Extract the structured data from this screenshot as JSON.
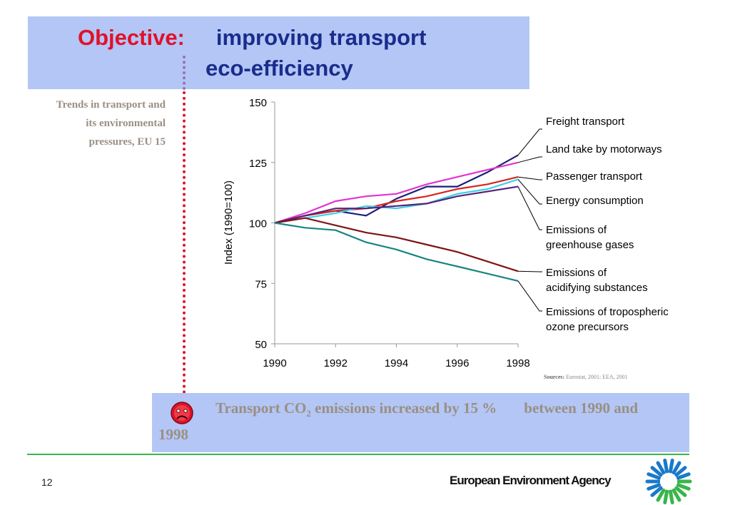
{
  "title": {
    "objective_label": "Objective:",
    "line1": "improving transport",
    "line2": "eco-efficiency"
  },
  "side_caption": {
    "line1": "Trends in transport and",
    "line2": "its environmental",
    "line3": "pressures, EU 15"
  },
  "chart_data": {
    "type": "line",
    "x": [
      1990,
      1991,
      1992,
      1993,
      1994,
      1995,
      1996,
      1997,
      1998
    ],
    "xticks": [
      "1990",
      "1992",
      "1994",
      "1996",
      "1998"
    ],
    "yticks": [
      "50",
      "75",
      "100",
      "125",
      "150"
    ],
    "ylabel": "Index (1990=100)",
    "xlabel": "",
    "ylim": [
      50,
      150
    ],
    "xlim": [
      1990,
      1998
    ],
    "grid": false,
    "legend": "right",
    "series": [
      {
        "name": "Freight transport",
        "color": "#1b1f7a",
        "values": [
          100,
          103,
          105,
          103,
          110,
          115,
          115,
          121,
          128
        ]
      },
      {
        "name": "Land take by motorways",
        "color": "#e233d3",
        "values": [
          100,
          104,
          109,
          111,
          112,
          116,
          119,
          122,
          125
        ]
      },
      {
        "name": "Passenger transport",
        "color": "#d6261f",
        "values": [
          100,
          103,
          105,
          106,
          109,
          111,
          114,
          116,
          119
        ]
      },
      {
        "name": "Energy consumption",
        "color": "#3ad1e6",
        "values": [
          100,
          102,
          104,
          107,
          106,
          108,
          112,
          114,
          118
        ]
      },
      {
        "name": "Emissions of greenhouse gases",
        "color": "#5a1f7a",
        "values": [
          100,
          103,
          106,
          106,
          107,
          108,
          111,
          113,
          115
        ]
      },
      {
        "name": "Emissions of acidifying substances",
        "color": "#7f1414",
        "values": [
          100,
          102,
          99,
          96,
          94,
          91,
          88,
          84,
          80
        ]
      },
      {
        "name": "Emissions of tropospheric ozone precursors",
        "color": "#17857e",
        "values": [
          100,
          98,
          97,
          92,
          89,
          85,
          82,
          79,
          76
        ]
      }
    ],
    "legend_labels": [
      [
        "Freight transport"
      ],
      [
        "Land take by motorways"
      ],
      [
        "Passenger transport"
      ],
      [
        "Energy consumption"
      ],
      [
        "Emissions of",
        "greenhouse gases"
      ],
      [
        "Emissions of",
        "acidifying substances"
      ],
      [
        "Emissions of tropospheric",
        "ozone precursors"
      ]
    ]
  },
  "sources": {
    "label": "Sources:",
    "text": "Eurostat, 2001; EEA, 2001"
  },
  "bottom": {
    "text_a": "Transport CO",
    "text_sub": "2",
    "text_b": " emissions increased by 15 %",
    "text_c": "between 1990 and",
    "text_d": "1998",
    "face_icon": "sad-face-icon"
  },
  "footer": {
    "page_number": "12",
    "agency": "European Environment Agency",
    "logo_icon": "eea-logo-icon",
    "accent_green": "#39b54a"
  }
}
